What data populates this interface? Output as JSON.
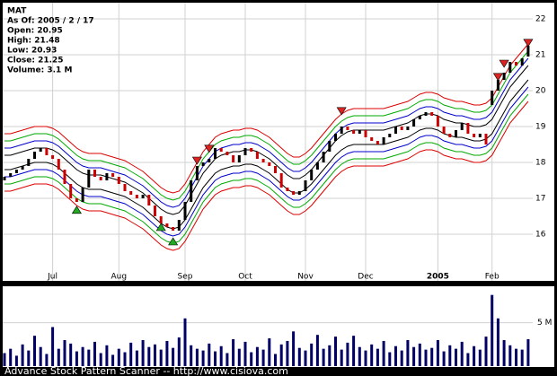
{
  "chart_data": [
    {
      "type": "candlestick",
      "title": "MAT",
      "info": [
        "As Of: 2005 / 2 / 17",
        "Open: 20.95",
        "High: 21.48",
        "Low: 20.93",
        "Close: 21.25",
        "Volume: 3.1 M"
      ],
      "categories": [
        null,
        null,
        null,
        null,
        null,
        null,
        null,
        null,
        "Jul",
        null,
        null,
        null,
        null,
        null,
        null,
        null,
        null,
        null,
        null,
        "Aug",
        null,
        null,
        null,
        null,
        null,
        null,
        null,
        null,
        null,
        null,
        "Sep",
        null,
        null,
        null,
        null,
        null,
        null,
        null,
        null,
        null,
        "Oct",
        null,
        null,
        null,
        null,
        null,
        null,
        null,
        null,
        null,
        "Nov",
        null,
        null,
        null,
        null,
        null,
        null,
        null,
        null,
        null,
        "Dec",
        null,
        null,
        null,
        null,
        null,
        null,
        null,
        null,
        null,
        null,
        null,
        "2005",
        null,
        null,
        null,
        null,
        null,
        null,
        null,
        null,
        "Feb",
        null,
        null,
        null,
        null,
        null,
        null
      ],
      "open": [
        17.5,
        17.6,
        17.7,
        17.8,
        17.9,
        18.1,
        18.3,
        18.4,
        18.2,
        18.1,
        17.8,
        17.4,
        17.0,
        16.9,
        17.3,
        17.8,
        17.6,
        17.5,
        17.7,
        17.6,
        17.4,
        17.2,
        17.1,
        17.0,
        17.1,
        16.8,
        16.5,
        16.3,
        16.2,
        16.1,
        16.4,
        16.9,
        17.5,
        17.9,
        18.0,
        18.1,
        18.4,
        18.3,
        18.2,
        18.0,
        18.2,
        18.4,
        18.3,
        18.1,
        18.0,
        17.9,
        17.7,
        17.3,
        17.2,
        17.1,
        17.2,
        17.5,
        17.8,
        18.0,
        18.3,
        18.6,
        18.8,
        19.0,
        18.9,
        18.8,
        18.9,
        18.7,
        18.6,
        18.5,
        18.7,
        18.8,
        19.0,
        18.9,
        19.0,
        19.2,
        19.3,
        19.4,
        19.3,
        19.0,
        18.8,
        18.7,
        18.9,
        19.1,
        18.8,
        18.7,
        18.8,
        19.6,
        20.0,
        20.3,
        20.5,
        20.8,
        20.7,
        20.95
      ],
      "close": [
        17.6,
        17.7,
        17.8,
        17.9,
        18.1,
        18.3,
        18.4,
        18.2,
        18.1,
        17.8,
        17.4,
        17.0,
        16.9,
        17.3,
        17.8,
        17.6,
        17.5,
        17.7,
        17.6,
        17.4,
        17.2,
        17.1,
        17.0,
        17.1,
        16.8,
        16.5,
        16.3,
        16.2,
        16.1,
        16.4,
        16.9,
        17.5,
        17.9,
        18.0,
        18.1,
        18.4,
        18.3,
        18.2,
        18.0,
        18.2,
        18.4,
        18.3,
        18.1,
        18.0,
        17.9,
        17.7,
        17.3,
        17.2,
        17.1,
        17.2,
        17.5,
        17.8,
        18.0,
        18.3,
        18.6,
        18.8,
        19.0,
        18.9,
        18.8,
        18.9,
        18.7,
        18.6,
        18.5,
        18.7,
        18.8,
        19.0,
        18.9,
        19.0,
        19.2,
        19.3,
        19.4,
        19.3,
        19.0,
        18.8,
        18.7,
        18.9,
        19.1,
        18.8,
        18.7,
        18.8,
        18.5,
        20.0,
        20.3,
        20.5,
        20.8,
        20.7,
        20.9,
        21.25
      ],
      "up_color": "#000000",
      "down_color": "#cc0000",
      "ylim": [
        14.7,
        22.4
      ],
      "yticks": [
        16,
        17,
        18,
        19,
        20,
        21,
        22
      ],
      "grid": true,
      "envelope": {
        "center": [
          18.0,
          18.0,
          18.05,
          18.1,
          18.15,
          18.2,
          18.2,
          18.2,
          18.15,
          18.05,
          17.9,
          17.75,
          17.6,
          17.5,
          17.45,
          17.45,
          17.45,
          17.4,
          17.35,
          17.3,
          17.25,
          17.15,
          17.05,
          16.95,
          16.8,
          16.65,
          16.5,
          16.4,
          16.35,
          16.4,
          16.6,
          16.9,
          17.2,
          17.5,
          17.7,
          17.9,
          18.0,
          18.05,
          18.1,
          18.1,
          18.15,
          18.15,
          18.1,
          18.0,
          17.9,
          17.75,
          17.6,
          17.45,
          17.35,
          17.35,
          17.45,
          17.6,
          17.8,
          18.0,
          18.2,
          18.4,
          18.55,
          18.65,
          18.7,
          18.7,
          18.7,
          18.7,
          18.7,
          18.7,
          18.75,
          18.8,
          18.85,
          18.9,
          19.0,
          19.1,
          19.15,
          19.15,
          19.1,
          19.0,
          18.95,
          18.9,
          18.9,
          18.85,
          18.8,
          18.8,
          18.85,
          19.0,
          19.3,
          19.6,
          19.9,
          20.1,
          20.3,
          20.5
        ],
        "offsets": [
          0.2,
          0.4,
          0.6,
          0.8
        ],
        "colors": [
          "#000000",
          "#0000cc",
          "#00aa00",
          "#dd0000"
        ]
      },
      "signals": [
        {
          "index": 12,
          "value": 16.78,
          "direction": "up"
        },
        {
          "index": 26,
          "value": 16.3,
          "direction": "up"
        },
        {
          "index": 28,
          "value": 15.9,
          "direction": "up"
        },
        {
          "index": 32,
          "value": 17.95,
          "direction": "down"
        },
        {
          "index": 34,
          "value": 18.28,
          "direction": "down"
        },
        {
          "index": 56,
          "value": 19.33,
          "direction": "down"
        },
        {
          "index": 82,
          "value": 20.28,
          "direction": "down"
        },
        {
          "index": 83,
          "value": 20.65,
          "direction": "down"
        },
        {
          "index": 87,
          "value": 21.23,
          "direction": "down"
        }
      ],
      "signal_colors": {
        "up": "#22aa22",
        "down": "#dd2222"
      }
    },
    {
      "type": "bar",
      "values": [
        1.5,
        2.0,
        1.2,
        2.5,
        1.8,
        3.5,
        2.2,
        1.4,
        4.5,
        2.0,
        3.0,
        2.6,
        1.7,
        2.2,
        1.9,
        2.8,
        1.5,
        2.4,
        1.3,
        2.0,
        1.6,
        2.7,
        1.8,
        3.0,
        2.2,
        2.5,
        1.9,
        2.9,
        2.1,
        3.3,
        5.5,
        2.4,
        2.0,
        1.8,
        2.6,
        1.7,
        2.3,
        1.5,
        3.1,
        2.0,
        2.8,
        1.6,
        2.2,
        1.9,
        3.2,
        1.4,
        2.5,
        2.9,
        4.0,
        2.1,
        1.8,
        2.6,
        3.6,
        2.0,
        2.4,
        3.4,
        1.9,
        2.7,
        3.5,
        2.2,
        1.8,
        2.5,
        2.0,
        2.9,
        1.6,
        2.3,
        1.8,
        3.0,
        2.2,
        2.6,
        1.9,
        2.1,
        3.0,
        1.7,
        2.4,
        2.0,
        2.8,
        1.5,
        2.3,
        1.9,
        3.4,
        8.2,
        5.5,
        3.0,
        2.4,
        2.0,
        1.9,
        3.1
      ],
      "color": "#000066",
      "ylim": [
        0,
        9.2
      ],
      "yticks": [
        {
          "value": 5,
          "label": "5 M"
        }
      ]
    }
  ],
  "footer": "Advance Stock Pattern Scanner -- http://www.cisiova.com"
}
